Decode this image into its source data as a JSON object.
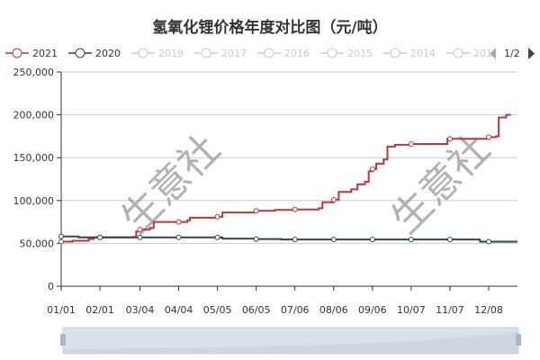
{
  "chart_data": {
    "type": "line",
    "title": "氢氧化锂价格年度对比图（元/吨）",
    "x_tick_labels": [
      "01/01",
      "02/01",
      "03/04",
      "04/04",
      "05/05",
      "06/05",
      "07/06",
      "08/06",
      "09/06",
      "10/07",
      "11/07",
      "12/08"
    ],
    "y_tick_labels": [
      "0",
      "50,000",
      "100,000",
      "150,000",
      "200,000",
      "250,000"
    ],
    "ylim": [
      0,
      250000
    ],
    "grid": true,
    "legend_placement": "top",
    "legend": {
      "items": [
        {
          "name": "2021",
          "active": true,
          "color": "#c23531"
        },
        {
          "name": "2020",
          "active": true,
          "color": "#2f4554"
        },
        {
          "name": "2019",
          "active": false
        },
        {
          "name": "2017",
          "active": false
        },
        {
          "name": "2016",
          "active": false
        },
        {
          "name": "2015",
          "active": false
        },
        {
          "name": "2014",
          "active": false
        },
        {
          "name": "201",
          "active": false
        }
      ],
      "page": "1/2"
    },
    "watermark": "生意社",
    "series": [
      {
        "name": "2021",
        "color": "#c23531",
        "points": [
          [
            "01/01",
            52000
          ],
          [
            "01/10",
            53000
          ],
          [
            "01/23",
            55000
          ],
          [
            "01/27",
            57000
          ],
          [
            "02/01",
            57000
          ],
          [
            "02/28",
            57500
          ],
          [
            "03/01",
            64000
          ],
          [
            "03/04",
            66000
          ],
          [
            "03/12",
            68000
          ],
          [
            "03/15",
            75000
          ],
          [
            "04/04",
            75000
          ],
          [
            "04/11",
            77000
          ],
          [
            "04/13",
            80000
          ],
          [
            "05/05",
            81000
          ],
          [
            "05/09",
            86000
          ],
          [
            "06/05",
            88000
          ],
          [
            "06/20",
            89000
          ],
          [
            "07/06",
            89500
          ],
          [
            "07/25",
            91000
          ],
          [
            "07/28",
            98000
          ],
          [
            "08/06",
            101000
          ],
          [
            "08/10",
            110000
          ],
          [
            "08/20",
            113000
          ],
          [
            "08/25",
            119000
          ],
          [
            "08/31",
            122000
          ],
          [
            "09/03",
            134000
          ],
          [
            "09/06",
            137000
          ],
          [
            "09/09",
            143000
          ],
          [
            "09/15",
            148000
          ],
          [
            "09/18",
            163000
          ],
          [
            "09/24",
            165000
          ],
          [
            "10/07",
            166000
          ],
          [
            "11/03",
            166000
          ],
          [
            "11/05",
            172000
          ],
          [
            "11/07",
            172000
          ],
          [
            "12/08",
            174000
          ],
          [
            "12/14",
            175000
          ],
          [
            "12/16",
            197000
          ],
          [
            "12/22",
            200000
          ],
          [
            "12/25",
            201000
          ]
        ]
      },
      {
        "name": "2020",
        "color": "#2f4554",
        "points": [
          [
            "01/01",
            58000
          ],
          [
            "01/10",
            58000
          ],
          [
            "01/15",
            57000
          ],
          [
            "02/01",
            57000
          ],
          [
            "03/04",
            57000
          ],
          [
            "04/04",
            57000
          ],
          [
            "05/05",
            57000
          ],
          [
            "05/09",
            55500
          ],
          [
            "06/05",
            55000
          ],
          [
            "06/25",
            54500
          ],
          [
            "07/06",
            54500
          ],
          [
            "08/06",
            54500
          ],
          [
            "09/06",
            54500
          ],
          [
            "10/07",
            54500
          ],
          [
            "11/07",
            54500
          ],
          [
            "11/25",
            54500
          ],
          [
            "12/01",
            52000
          ],
          [
            "12/08",
            52000
          ],
          [
            "12/31",
            52000
          ]
        ]
      }
    ]
  }
}
